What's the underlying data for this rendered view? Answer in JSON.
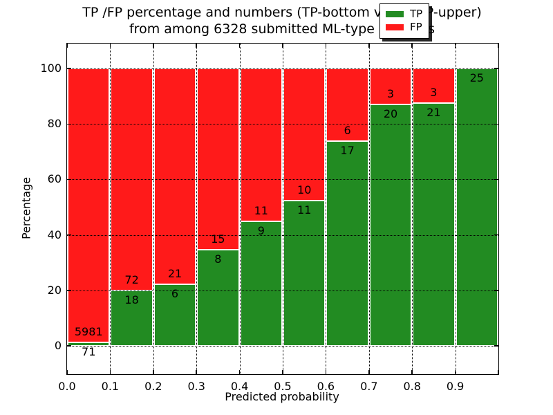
{
  "title": {
    "line1": "TP /FP percentage and numbers (TP-bottom value, FP-upper)",
    "line2": "from among 6328 submitted ML-type contacts"
  },
  "chart_data": {
    "type": "bar",
    "stacked": true,
    "normalized_to_percent": true,
    "title": "TP /FP percentage and numbers (TP-bottom value, FP-upper) from among 6328 submitted ML-type contacts",
    "xlabel": "Predicted probability",
    "ylabel": "Percentage",
    "bins": [
      [
        0.0,
        0.1
      ],
      [
        0.1,
        0.2
      ],
      [
        0.2,
        0.3
      ],
      [
        0.3,
        0.4
      ],
      [
        0.4,
        0.5
      ],
      [
        0.5,
        0.6
      ],
      [
        0.6,
        0.7
      ],
      [
        0.7,
        0.8
      ],
      [
        0.8,
        0.9
      ],
      [
        0.9,
        1.0
      ]
    ],
    "series": [
      {
        "name": "TP",
        "color": "#228b22",
        "counts": [
          71,
          18,
          6,
          8,
          9,
          11,
          17,
          20,
          21,
          25
        ]
      },
      {
        "name": "FP",
        "color": "#ff1a1a",
        "counts": [
          5981,
          72,
          21,
          15,
          11,
          10,
          6,
          3,
          3,
          0
        ]
      }
    ],
    "tp_percent_of_bin": [
      1.17,
      20.0,
      22.2,
      34.8,
      45.0,
      52.4,
      73.9,
      87.0,
      87.5,
      100.0
    ],
    "xlim": [
      0.0,
      1.0
    ],
    "ylim": [
      -10.2,
      109.0
    ],
    "xticks": [
      "0.0",
      "0.1",
      "0.2",
      "0.3",
      "0.4",
      "0.5",
      "0.6",
      "0.7",
      "0.8",
      "0.9"
    ],
    "yticks": [
      0,
      20,
      40,
      60,
      80,
      100
    ],
    "grid": true,
    "grid_style": "dotted",
    "legend": {
      "position": "upper right",
      "entries": [
        {
          "label": "TP",
          "color": "#228b22"
        },
        {
          "label": "FP",
          "color": "#ff1a1a"
        }
      ]
    }
  }
}
